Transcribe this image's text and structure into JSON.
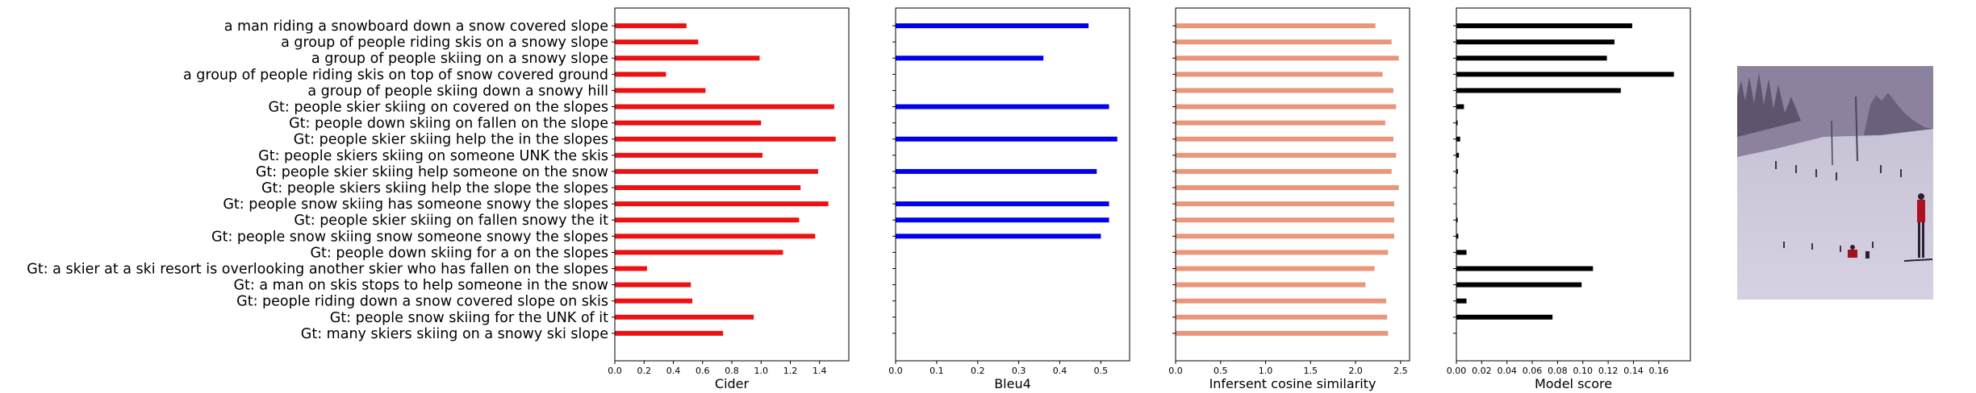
{
  "chart_data": [
    {
      "type": "bar",
      "orientation": "horizontal",
      "xlabel": "Cider",
      "color": "#ee1111",
      "xlim": [
        0,
        1.6
      ],
      "xticks": [
        "0.0",
        "0.2",
        "0.4",
        "0.6",
        "0.8",
        "1.0",
        "1.2",
        "1.4"
      ],
      "categories": [
        "a man riding a snowboard down a snow covered slope",
        "a group of people riding skis on a snowy slope",
        "a group of people skiing on a snowy slope",
        "a group of people riding skis on top of snow covered ground",
        "a group of people skiing down a snowy hill",
        "Gt: people skier skiing on covered on the slopes",
        "Gt: people down skiing on fallen on the slope",
        "Gt: people skier skiing help the in the slopes",
        "Gt: people skiers skiing on someone UNK the skis",
        "Gt: people skier skiing help someone on the snow",
        "Gt: people skiers skiing help the slope the slopes",
        "Gt: people snow skiing has someone snowy the slopes",
        "Gt: people skier skiing on fallen snowy the it",
        "Gt: people snow skiing snow someone snowy the slopes",
        "Gt: people down skiing for a on the slopes",
        "Gt: a skier at a ski resort is overlooking another skier who has fallen on the slopes",
        "Gt: a man on skis stops to help someone in the snow",
        "Gt: people riding down a snow covered slope on skis",
        "Gt: people snow skiing for the UNK of it",
        "Gt: many skiers skiing on a snowy ski slope"
      ],
      "values": [
        0.49,
        0.57,
        0.99,
        0.35,
        0.62,
        1.5,
        1.0,
        1.51,
        1.01,
        1.39,
        1.27,
        1.46,
        1.26,
        1.37,
        1.15,
        0.22,
        0.52,
        0.53,
        0.95,
        0.74
      ]
    },
    {
      "type": "bar",
      "orientation": "horizontal",
      "xlabel": "Bleu4",
      "color": "#0000ee",
      "xlim": [
        0,
        0.57
      ],
      "xticks": [
        "0.0",
        "0.1",
        "0.2",
        "0.3",
        "0.4",
        "0.5"
      ],
      "values": [
        0.47,
        0.0,
        0.36,
        0.0,
        0.0,
        0.52,
        0.0,
        0.54,
        0.0,
        0.49,
        0.0,
        0.52,
        0.52,
        0.5,
        0.0,
        0.0,
        0.0,
        0.0,
        0.0,
        0.0
      ]
    },
    {
      "type": "bar",
      "orientation": "horizontal",
      "xlabel": "Infersent cosine similarity",
      "color": "#e9967a",
      "xlim": [
        0,
        2.6
      ],
      "xticks": [
        "0.0",
        "0.5",
        "1.0",
        "1.5",
        "2.0",
        "2.5"
      ],
      "values": [
        2.22,
        2.4,
        2.48,
        2.3,
        2.42,
        2.45,
        2.33,
        2.42,
        2.45,
        2.4,
        2.48,
        2.43,
        2.43,
        2.43,
        2.36,
        2.21,
        2.11,
        2.34,
        2.35,
        2.36
      ]
    },
    {
      "type": "bar",
      "orientation": "horizontal",
      "xlabel": "Model score",
      "color": "#000000",
      "xlim": [
        0,
        0.185
      ],
      "xticks": [
        "0.00",
        "0.02",
        "0.04",
        "0.06",
        "0.08",
        "0.10",
        "0.12",
        "0.14",
        "0.16"
      ],
      "values": [
        0.139,
        0.125,
        0.119,
        0.172,
        0.13,
        0.006,
        0.001,
        0.003,
        0.002,
        0.0012,
        0.0,
        0.0,
        0.001,
        0.0015,
        0.008,
        0.108,
        0.099,
        0.008,
        0.076,
        0.0
      ]
    }
  ],
  "image": {
    "description_icon": "ski-slope-photo"
  }
}
